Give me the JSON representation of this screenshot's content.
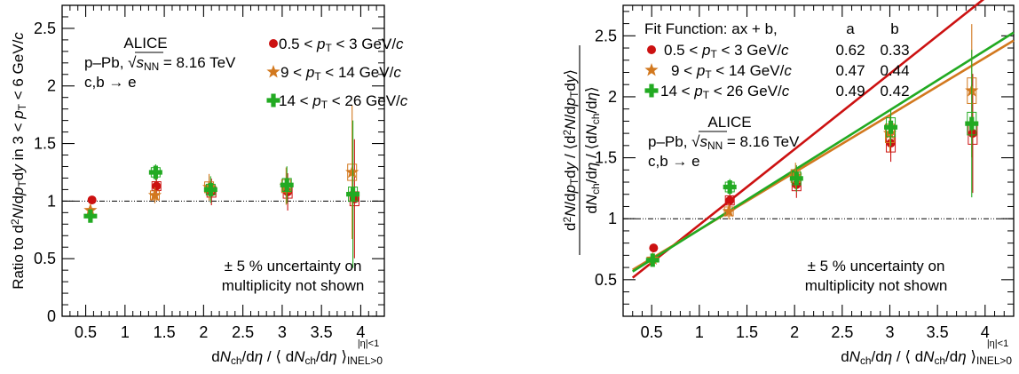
{
  "chart_data": [
    {
      "type": "scatter",
      "xlabel": "dN_ch/dη / ⟨dN_ch/dη⟩^{|η|<1}_{INEL>0}",
      "ylabel": "Ratio to d²N/dp_T dy in 3 < p_T < 6 GeV/c",
      "xlim": [
        0.2,
        4.3
      ],
      "ylim": [
        0,
        2.7
      ],
      "xticks": [
        "0.5",
        "1",
        "1.5",
        "2",
        "2.5",
        "3",
        "3.5",
        "4"
      ],
      "yticks": [
        "0",
        "0.5",
        "1",
        "1.5",
        "2",
        "2.5"
      ],
      "reference_line_y": 1,
      "text": {
        "experiment": "ALICE",
        "system": "p–Pb, √s_NN = 8.16 TeV",
        "decay": "c,b → e",
        "note_line1": "± 5 % uncertainty on",
        "note_line2": "multiplicity not shown"
      },
      "series": [
        {
          "name": "0.5 < p_T < 3 GeV/c",
          "color": "#cc1111",
          "marker": "circle",
          "x": [
            0.58,
            1.4,
            2.1,
            3.07,
            3.92
          ],
          "y": [
            1.01,
            1.13,
            1.08,
            1.08,
            1.02
          ]
        },
        {
          "name": "9 < p_T < 14 GeV/c",
          "color": "#d2781e",
          "marker": "star",
          "x": [
            0.56,
            1.38,
            2.07,
            3.05,
            3.89
          ],
          "y": [
            0.92,
            1.05,
            1.12,
            1.13,
            1.25
          ]
        },
        {
          "name": "14 < p_T < 26 GeV/c",
          "color": "#22aa22",
          "marker": "cross",
          "x": [
            0.56,
            1.39,
            2.09,
            3.06,
            3.9
          ],
          "y": [
            0.87,
            1.25,
            1.1,
            1.14,
            1.06
          ]
        }
      ]
    },
    {
      "type": "scatter",
      "xlabel": "dN_ch/dη / ⟨dN_ch/dη⟩^{|η|<1}_{INEL>0}",
      "ylabel": "d²N/dp_T dy / ⟨d²N/dp_T dy⟩ over dN_ch/dη / ⟨dN_ch/dη⟩",
      "xlim": [
        0.2,
        4.3
      ],
      "ylim": [
        0.2,
        2.75
      ],
      "xticks": [
        "0.5",
        "1",
        "1.5",
        "2",
        "2.5",
        "3",
        "3.5",
        "4"
      ],
      "yticks": [
        "0.5",
        "1",
        "1.5",
        "2",
        "2.5"
      ],
      "reference_line_y": 1,
      "legend_header": {
        "title": "Fit Function: ax + b,",
        "col_a": "a",
        "col_b": "b"
      },
      "text": {
        "experiment": "ALICE",
        "system": "p–Pb, √s_NN = 8.16 TeV",
        "decay": "c,b → e",
        "note_line1": "± 5 % uncertainty on",
        "note_line2": "multiplicity not shown"
      },
      "series": [
        {
          "name": "0.5 < p_T < 3 GeV/c",
          "color": "#cc1111",
          "marker": "circle",
          "a": "0.62",
          "b": "0.33",
          "x": [
            0.52,
            1.32,
            2.02,
            3.01,
            3.87
          ],
          "y": [
            0.76,
            1.15,
            1.28,
            1.62,
            1.7
          ]
        },
        {
          "name": "9 < p_T < 14 GeV/c",
          "color": "#d2781e",
          "marker": "star",
          "a": "0.47",
          "b": "0.44",
          "x": [
            0.51,
            1.31,
            2.01,
            3.0,
            3.86
          ],
          "y": [
            0.67,
            1.06,
            1.35,
            1.7,
            2.05
          ]
        },
        {
          "name": "14 < p_T < 26 GeV/c",
          "color": "#22aa22",
          "marker": "cross",
          "a": "0.49",
          "b": "0.42",
          "x": [
            0.51,
            1.32,
            2.02,
            3.01,
            3.86
          ],
          "y": [
            0.66,
            1.26,
            1.33,
            1.75,
            1.78
          ]
        }
      ]
    }
  ]
}
